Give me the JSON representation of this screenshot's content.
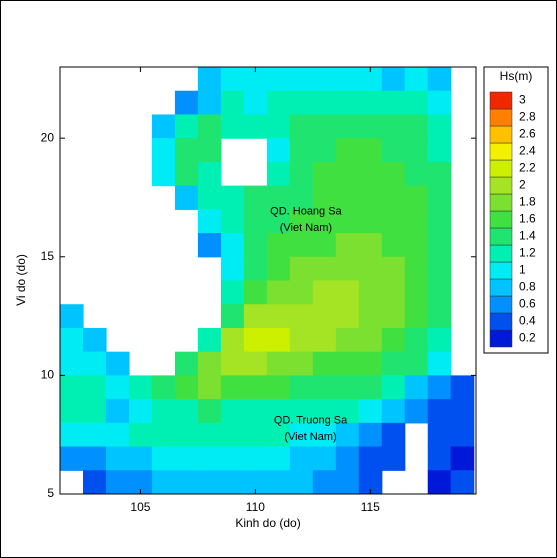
{
  "chart_data": {
    "type": "heatmap",
    "xlabel": "Kinh do (do)",
    "ylabel": "Vi do (do)",
    "xlim": [
      101.5,
      119.6
    ],
    "ylim": [
      5,
      23
    ],
    "xticks": [
      105,
      110,
      115
    ],
    "yticks": [
      5,
      10,
      15,
      20
    ],
    "x": [
      102,
      103,
      104,
      105,
      106,
      107,
      108,
      109,
      110,
      111,
      112,
      113,
      114,
      115,
      116,
      117,
      118,
      119
    ],
    "y": [
      22.5,
      21.5,
      20.5,
      19.5,
      18.5,
      17.5,
      16.5,
      15.5,
      14.5,
      13.5,
      12.5,
      11.5,
      10.5,
      9.5,
      8.5,
      7.5,
      6.5,
      5.5
    ],
    "values": [
      [
        null,
        null,
        null,
        null,
        null,
        null,
        0.8,
        1.0,
        1.0,
        1.0,
        1.0,
        1.0,
        1.0,
        1.0,
        0.9,
        1.0,
        0.9,
        null
      ],
      [
        null,
        null,
        null,
        null,
        null,
        0.6,
        0.9,
        1.2,
        1.1,
        1.2,
        1.2,
        1.2,
        1.3,
        1.3,
        1.3,
        1.2,
        1.1,
        null
      ],
      [
        null,
        null,
        null,
        null,
        0.9,
        1.3,
        1.4,
        1.3,
        1.3,
        1.2,
        1.4,
        1.4,
        1.5,
        1.5,
        1.4,
        1.4,
        1.2,
        null
      ],
      [
        null,
        null,
        null,
        null,
        1.0,
        1.4,
        1.4,
        null,
        null,
        1.1,
        1.4,
        1.5,
        1.6,
        1.6,
        1.5,
        1.5,
        1.3,
        null
      ],
      [
        null,
        null,
        null,
        null,
        1.1,
        1.4,
        1.2,
        null,
        null,
        1.3,
        1.5,
        1.6,
        1.6,
        1.7,
        1.6,
        1.5,
        1.4,
        null
      ],
      [
        null,
        null,
        null,
        null,
        null,
        0.9,
        1.3,
        1.3,
        1.4,
        1.4,
        1.5,
        1.6,
        1.6,
        1.7,
        1.7,
        1.6,
        1.5,
        null
      ],
      [
        null,
        null,
        null,
        null,
        null,
        null,
        1.0,
        1.3,
        1.4,
        1.5,
        1.6,
        1.6,
        1.7,
        1.7,
        1.7,
        1.6,
        1.5,
        null
      ],
      [
        null,
        null,
        null,
        null,
        null,
        null,
        0.6,
        1.1,
        1.4,
        1.6,
        1.6,
        1.7,
        1.8,
        1.8,
        1.7,
        1.6,
        1.4,
        null
      ],
      [
        null,
        null,
        null,
        null,
        null,
        null,
        null,
        1.0,
        1.5,
        1.7,
        1.8,
        1.9,
        1.9,
        1.8,
        1.8,
        1.7,
        1.5,
        null
      ],
      [
        null,
        null,
        null,
        null,
        null,
        null,
        null,
        1.2,
        1.7,
        1.9,
        1.9,
        2.0,
        2.0,
        1.9,
        1.8,
        1.7,
        1.5,
        null
      ],
      [
        0.9,
        null,
        null,
        null,
        null,
        null,
        null,
        1.5,
        2.1,
        2.1,
        2.1,
        2.1,
        2.0,
        1.9,
        1.8,
        1.6,
        1.4,
        null
      ],
      [
        1.0,
        0.9,
        null,
        null,
        null,
        null,
        1.2,
        2.1,
        2.3,
        2.2,
        2.1,
        2.0,
        1.9,
        1.8,
        1.7,
        1.5,
        1.3,
        null
      ],
      [
        1.1,
        1.0,
        0.8,
        null,
        null,
        1.4,
        1.8,
        2.0,
        2.0,
        1.9,
        1.8,
        1.7,
        1.6,
        1.6,
        1.5,
        1.4,
        1.0,
        null
      ],
      [
        1.2,
        1.2,
        1.0,
        1.2,
        1.5,
        1.7,
        1.8,
        1.7,
        1.6,
        1.6,
        1.5,
        1.5,
        1.4,
        1.4,
        1.2,
        0.9,
        0.7,
        0.5
      ],
      [
        1.3,
        1.3,
        0.9,
        1.0,
        1.3,
        1.3,
        1.4,
        1.3,
        1.3,
        1.3,
        1.3,
        1.2,
        1.2,
        1.0,
        0.8,
        0.6,
        0.5,
        0.4
      ],
      [
        1.0,
        1.1,
        1.1,
        1.2,
        1.2,
        1.2,
        1.2,
        1.2,
        1.2,
        1.2,
        1.1,
        1.0,
        0.9,
        0.7,
        0.5,
        null,
        0.5,
        0.4
      ],
      [
        0.7,
        0.7,
        0.8,
        0.9,
        1.0,
        1.0,
        1.0,
        1.0,
        1.0,
        1.0,
        0.9,
        0.8,
        0.7,
        0.5,
        0.4,
        null,
        0.4,
        0.3
      ],
      [
        null,
        0.5,
        0.6,
        0.7,
        0.8,
        0.9,
        0.9,
        0.9,
        0.9,
        0.8,
        0.8,
        0.7,
        0.6,
        0.4,
        null,
        null,
        0.3,
        0.4
      ]
    ],
    "colorbar": {
      "title": "Hs(m)",
      "levels": [
        0.2,
        0.4,
        0.6,
        0.8,
        1,
        1.2,
        1.4,
        1.6,
        1.8,
        2,
        2.2,
        2.4,
        2.6,
        2.8,
        3
      ],
      "colors": [
        "#0018d8",
        "#0050f0",
        "#0090ff",
        "#00c4ff",
        "#00ecf4",
        "#00f0b4",
        "#20e470",
        "#40e040",
        "#7ce030",
        "#a4e424",
        "#ccf000",
        "#f4f000",
        "#ffc000",
        "#ff8000",
        "#f02800"
      ]
    },
    "annotations": [
      "QD. Hoang Sa",
      "(Viet Nam)",
      "QD. Truong Sa",
      "(Viet Nam)"
    ]
  }
}
